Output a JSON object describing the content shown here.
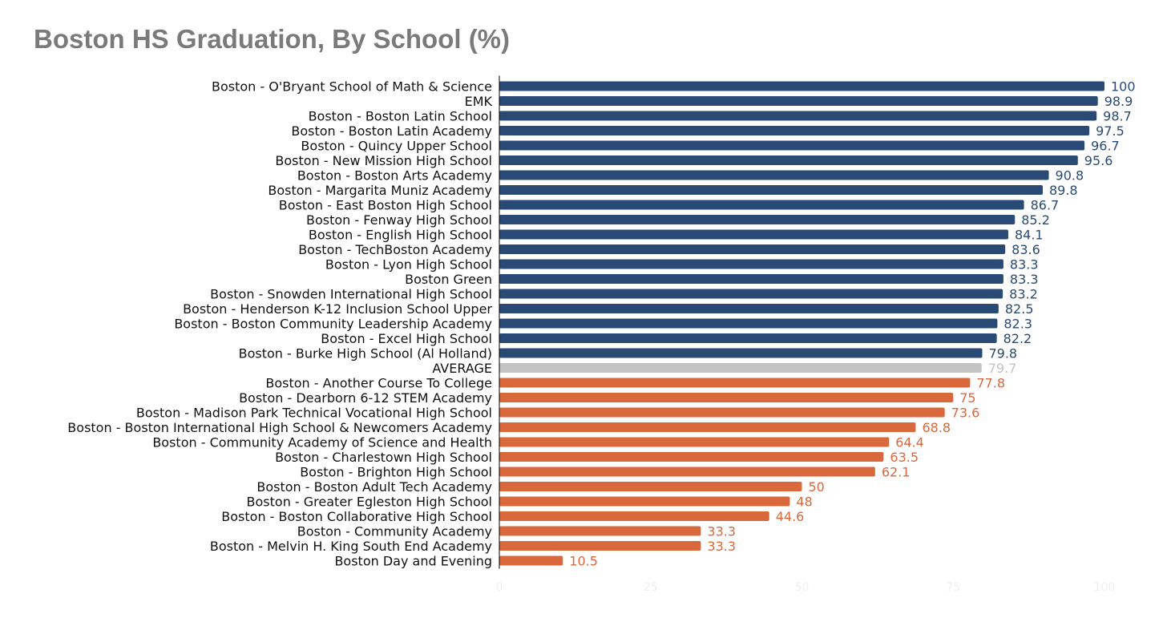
{
  "chart_data": {
    "type": "bar",
    "orientation": "horizontal",
    "title": "Boston HS Graduation, By School (%)",
    "xlim": [
      0,
      100
    ],
    "xticks": [
      "0",
      "25",
      "50",
      "75",
      "100"
    ],
    "grid": false,
    "legend": "none",
    "colors": {
      "above_average": "#294a74",
      "average": "#c3c3c3",
      "below_average": "#d9683d"
    },
    "categories": [
      "Boston - O'Bryant School of Math & Science",
      "EMK",
      "Boston - Boston Latin School",
      "Boston - Boston Latin Academy",
      "Boston - Quincy Upper School",
      "Boston - New Mission High School",
      "Boston - Boston Arts Academy",
      "Boston - Margarita Muniz Academy",
      "Boston - East Boston High School",
      "Boston - Fenway High School",
      "Boston - English High School",
      "Boston - TechBoston Academy",
      "Boston - Lyon High School",
      "Boston Green",
      "Boston - Snowden International High School",
      "Boston - Henderson K-12 Inclusion School Upper",
      "Boston - Boston Community Leadership Academy",
      "Boston - Excel High School",
      "Boston - Burke High School (Al Holland)",
      "AVERAGE",
      "Boston - Another Course To College",
      "Boston - Dearborn 6-12 STEM Academy",
      "Boston - Madison Park Technical Vocational High School",
      "Boston - Boston International High School & Newcomers Academy",
      "Boston - Community Academy of Science and Health",
      "Boston - Charlestown High School",
      "Boston - Brighton High School",
      "Boston - Boston Adult Tech Academy",
      "Boston - Greater Egleston High School",
      "Boston - Boston Collaborative High School",
      "Boston - Community Academy",
      "Boston - Melvin H. King South End Academy",
      "Boston Day and Evening"
    ],
    "values": [
      100,
      98.9,
      98.7,
      97.5,
      96.7,
      95.6,
      90.8,
      89.8,
      86.7,
      85.2,
      84.1,
      83.6,
      83.3,
      83.3,
      83.2,
      82.5,
      82.3,
      82.2,
      79.8,
      79.7,
      77.8,
      75,
      73.6,
      68.8,
      64.4,
      63.5,
      62.1,
      50,
      48,
      44.6,
      33.3,
      33.3,
      10.5
    ],
    "value_labels": [
      "100",
      "98.9",
      "98.7",
      "97.5",
      "96.7",
      "95.6",
      "90.8",
      "89.8",
      "86.7",
      "85.2",
      "84.1",
      "83.6",
      "83.3",
      "83.3",
      "83.2",
      "82.5",
      "82.3",
      "82.2",
      "79.8",
      "79.7",
      "77.8",
      "75",
      "73.6",
      "68.8",
      "64.4",
      "63.5",
      "62.1",
      "50",
      "48",
      "44.6",
      "33.3",
      "33.3",
      "10.5"
    ],
    "groups": [
      "above",
      "above",
      "above",
      "above",
      "above",
      "above",
      "above",
      "above",
      "above",
      "above",
      "above",
      "above",
      "above",
      "above",
      "above",
      "above",
      "above",
      "above",
      "above",
      "average",
      "below",
      "below",
      "below",
      "below",
      "below",
      "below",
      "below",
      "below",
      "below",
      "below",
      "below",
      "below",
      "below"
    ]
  }
}
